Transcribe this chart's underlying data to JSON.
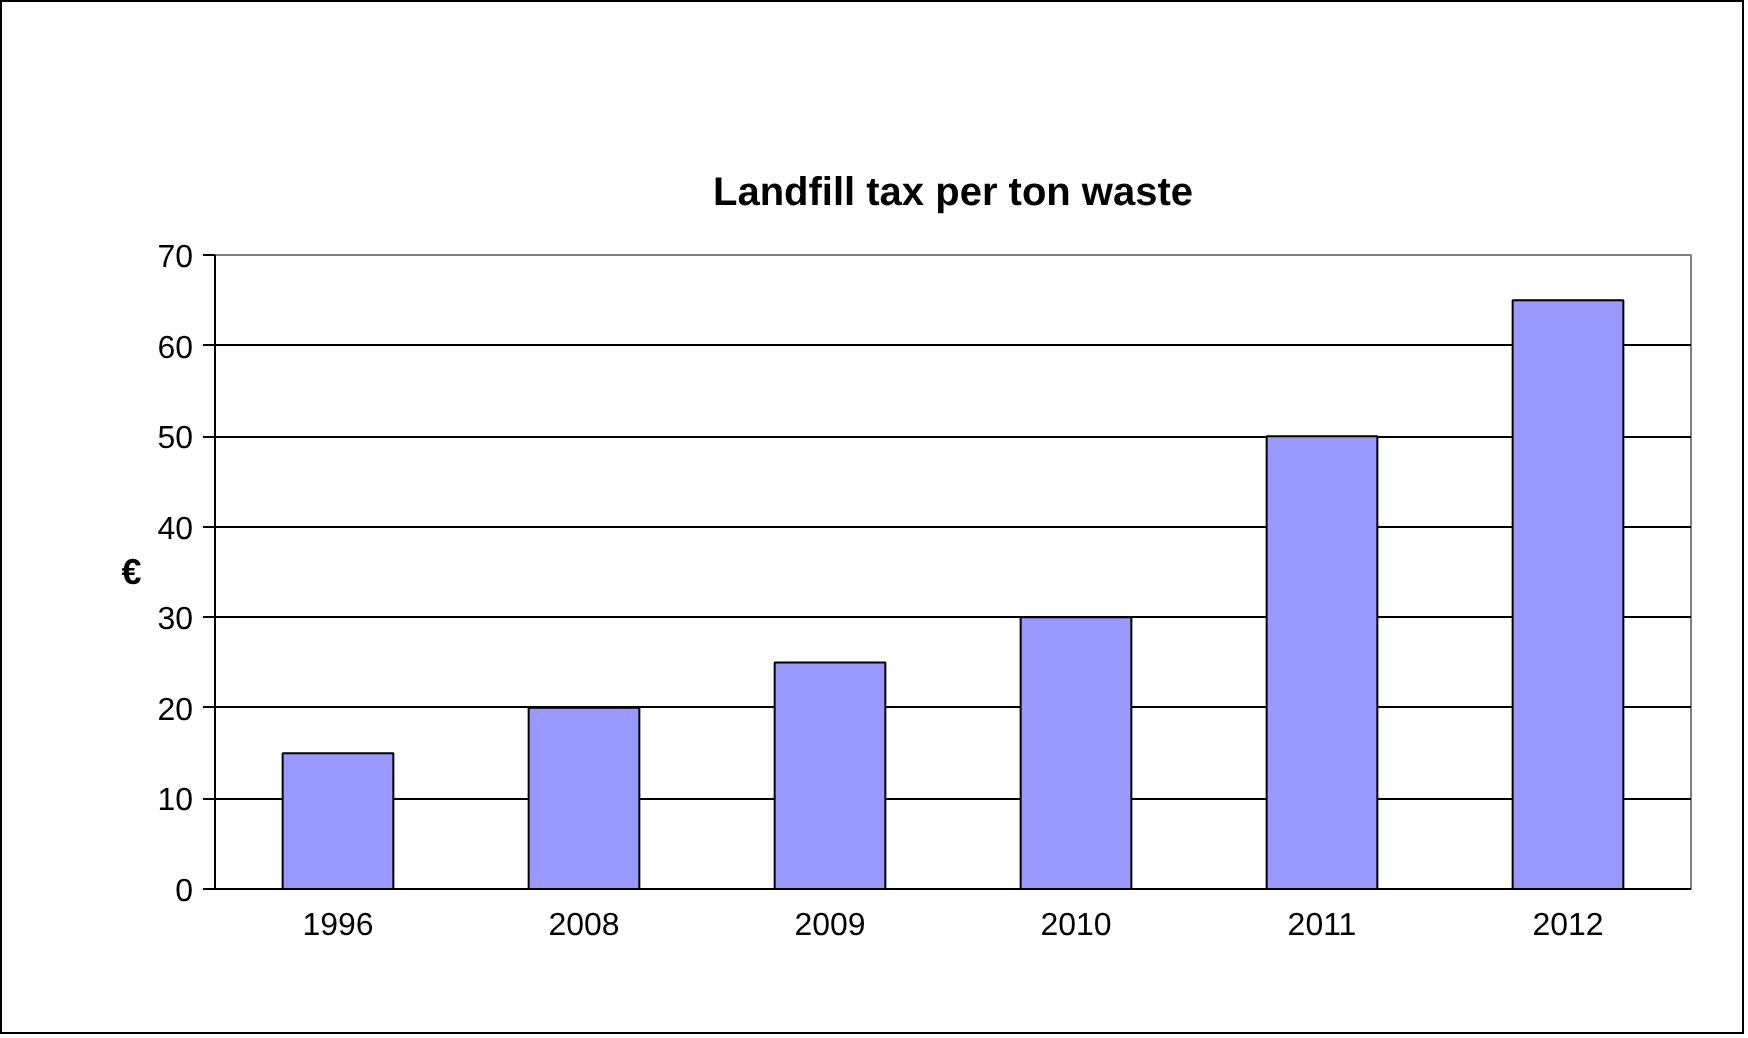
{
  "chart_data": {
    "type": "bar",
    "title": "Landfill tax per ton waste",
    "ylabel": "€",
    "categories": [
      "1996",
      "2008",
      "2009",
      "2010",
      "2011",
      "2012"
    ],
    "values": [
      15,
      20,
      25,
      30,
      50,
      65
    ],
    "color": "#9999ff",
    "ylim": [
      0,
      70
    ],
    "yticks": [
      0,
      10,
      20,
      30,
      40,
      50,
      60,
      70
    ],
    "grid": "y"
  }
}
